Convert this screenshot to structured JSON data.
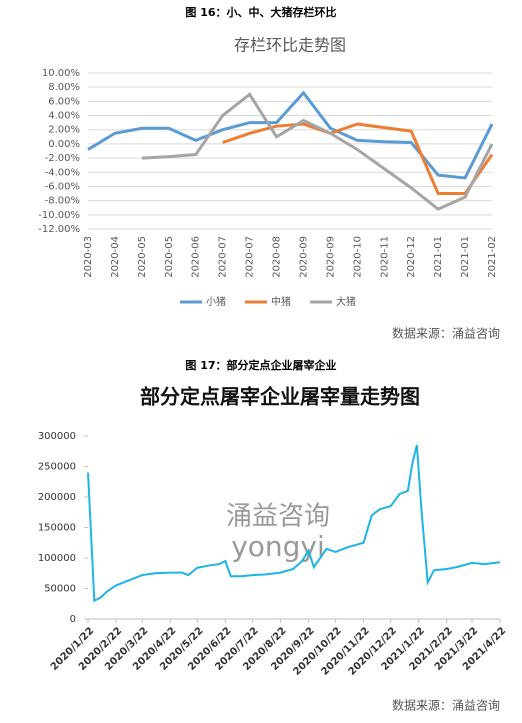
{
  "captions": [
    "图 16：小、中、大猪存栏环比",
    "图 17：部分定点企业屠宰企业"
  ],
  "sources": [
    "数据来源：涌益咨询",
    "数据来源：涌益咨询"
  ],
  "chart_data": [
    {
      "type": "line",
      "title": "存栏环比走势图",
      "categories": [
        "2020-03",
        "2020-04",
        "2020-05",
        "2020-05",
        "2020-06",
        "2020-07",
        "2020-07",
        "2020-08",
        "2020-09",
        "2020-09",
        "2020-10",
        "2020-11",
        "2020-12",
        "2021-01",
        "2021-01",
        "2021-02"
      ],
      "series": [
        {
          "name": "小猪",
          "color": "#5b9bd5",
          "values": [
            -0.8,
            1.5,
            2.2,
            2.2,
            0.5,
            2.0,
            3.0,
            3.0,
            7.2,
            2.2,
            0.5,
            0.3,
            0.2,
            -4.4,
            -4.8,
            2.8
          ]
        },
        {
          "name": "中猪",
          "color": "#ed7d31",
          "values": [
            null,
            null,
            null,
            null,
            null,
            0.2,
            1.5,
            2.5,
            2.8,
            1.5,
            2.8,
            2.3,
            1.8,
            -7.0,
            -7.0,
            -1.5
          ]
        },
        {
          "name": "大猪",
          "color": "#a5a5a5",
          "values": [
            null,
            null,
            -2.0,
            -1.8,
            -1.5,
            4.0,
            7.0,
            1.0,
            3.3,
            1.5,
            -0.8,
            -3.5,
            -6.2,
            -9.2,
            -7.5,
            0.0
          ]
        }
      ],
      "ylim": [
        -12,
        10
      ],
      "yticks": [
        {
          "value": 10,
          "label": "10.00%"
        },
        {
          "value": 8,
          "label": "8.00%"
        },
        {
          "value": 6,
          "label": "6.00%"
        },
        {
          "value": 4,
          "label": "4.00%"
        },
        {
          "value": 2,
          "label": "2.00%"
        },
        {
          "value": 0,
          "label": "0.00%"
        },
        {
          "value": -2,
          "label": "-2.00%"
        },
        {
          "value": -4,
          "label": "-4.00%"
        },
        {
          "value": -6,
          "label": "-6.00%"
        },
        {
          "value": -8,
          "label": "-8.00%"
        },
        {
          "value": -10,
          "label": "-10.00%"
        },
        {
          "value": -12,
          "label": "-12.00%"
        }
      ],
      "grid": true,
      "legend": "bottom"
    },
    {
      "type": "line",
      "title": "部分定点屠宰企业屠宰量走势图",
      "watermark": [
        "涌益咨询",
        "yongyi"
      ],
      "x": [
        "2020/1/22",
        "2020/1/29",
        "2020/2/5",
        "2020/2/12",
        "2020/2/22",
        "2020/3/5",
        "2020/3/22",
        "2020/4/5",
        "2020/4/22",
        "2020/5/5",
        "2020/5/12",
        "2020/5/22",
        "2020/6/5",
        "2020/6/15",
        "2020/6/22",
        "2020/6/28",
        "2020/7/10",
        "2020/7/22",
        "2020/8/5",
        "2020/8/22",
        "2020/9/5",
        "2020/9/15",
        "2020/9/22",
        "2020/9/28",
        "2020/10/5",
        "2020/10/12",
        "2020/10/22",
        "2020/11/5",
        "2020/11/22",
        "2020/12/1",
        "2020/12/10",
        "2020/12/22",
        "2021/1/1",
        "2021/1/10",
        "2021/1/15",
        "2021/1/20",
        "2021/1/25",
        "2021/2/1",
        "2021/2/8",
        "2021/2/22",
        "2021/3/5",
        "2021/3/22",
        "2021/4/5",
        "2021/4/22"
      ],
      "series": [
        {
          "name": "屠宰量",
          "color": "#1fb4e8",
          "values": [
            240000,
            30000,
            35000,
            45000,
            55000,
            62000,
            72000,
            75000,
            76000,
            76000,
            72000,
            84000,
            88000,
            90000,
            95000,
            70000,
            70000,
            72000,
            73000,
            76000,
            82000,
            95000,
            112000,
            85000,
            100000,
            115000,
            110000,
            118000,
            125000,
            170000,
            180000,
            185000,
            205000,
            210000,
            255000,
            285000,
            180000,
            60000,
            80000,
            82000,
            85000,
            92000,
            90000,
            93000
          ]
        }
      ],
      "xlim": [
        "2020/1/22",
        "2021/4/22"
      ],
      "xticks": [
        "2020/1/22",
        "2020/2/22",
        "2020/3/22",
        "2020/4/22",
        "2020/5/22",
        "2020/6/22",
        "2020/7/22",
        "2020/8/22",
        "2020/9/22",
        "2020/10/22",
        "2020/11/22",
        "2020/12/22",
        "2021/1/22",
        "2021/2/22",
        "2021/3/22",
        "2021/4/22"
      ],
      "ylim": [
        0,
        300000
      ],
      "yticks": [
        0,
        50000,
        100000,
        150000,
        200000,
        250000,
        300000
      ]
    }
  ]
}
